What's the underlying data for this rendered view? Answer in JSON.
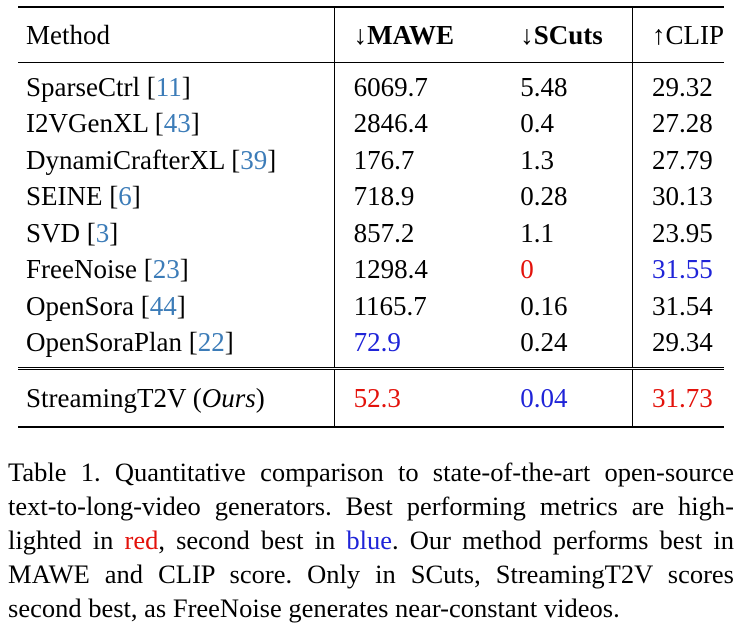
{
  "table": {
    "headers": {
      "method": "Method",
      "mawe": "↓MAWE",
      "scuts": "↓SCuts",
      "clip": "↑CLIP"
    },
    "rows": [
      {
        "name": "SparseCtrl",
        "cite": "11",
        "mawe": "6069.7",
        "scuts": "5.48",
        "clip": "29.32"
      },
      {
        "name": "I2VGenXL",
        "cite": "43",
        "mawe": "2846.4",
        "scuts": "0.4",
        "clip": "27.28"
      },
      {
        "name": "DynamiCrafterXL",
        "cite": "39",
        "mawe": "176.7",
        "scuts": "1.3",
        "clip": "27.79"
      },
      {
        "name": "SEINE",
        "cite": "6",
        "mawe": "718.9",
        "scuts": "0.28",
        "clip": "30.13"
      },
      {
        "name": "SVD",
        "cite": "3",
        "mawe": "857.2",
        "scuts": "1.1",
        "clip": "23.95"
      },
      {
        "name": "FreeNoise",
        "cite": "23",
        "mawe": "1298.4",
        "scuts": "0",
        "clip": "31.55"
      },
      {
        "name": "OpenSora",
        "cite": "44",
        "mawe": "1165.7",
        "scuts": "0.16",
        "clip": "31.54"
      },
      {
        "name": "OpenSoraPlan",
        "cite": "22",
        "mawe": "72.9",
        "scuts": "0.24",
        "clip": "29.34"
      }
    ],
    "ours": {
      "name": "StreamingT2V",
      "tag": "Ours",
      "mawe": "52.3",
      "scuts": "0.04",
      "clip": "31.73"
    },
    "colors": {
      "best": "#e3120b",
      "second": "#1f24d8",
      "citation": "#3c7cb8"
    }
  },
  "caption": {
    "line1": "Table 1.  Quantitative comparison to state-of-the-art open-source",
    "line2": "text-to-long-video generators.  Best performing metrics are high-",
    "line3_a": "lighted in ",
    "line3_red": "red",
    "line3_b": ", second best in ",
    "line3_blue": "blue",
    "line3_c": ".  Our method performs best in",
    "line4": "MAWE and CLIP score.  Only in SCuts, StreamingT2V scores",
    "line5": "second best, as FreeNoise generates near-constant videos."
  }
}
